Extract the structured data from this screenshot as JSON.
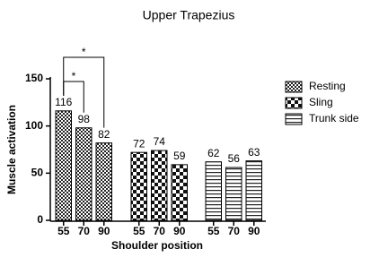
{
  "chart_data": {
    "type": "bar",
    "title": "Upper Trapezius",
    "x_label": "Shoulder position",
    "y_label": "Muscle activation",
    "categories": [
      "55",
      "70",
      "90"
    ],
    "series": [
      {
        "name": "Resting",
        "color": "#000000",
        "pattern": "fine-check",
        "values": [
          116,
          98,
          82
        ]
      },
      {
        "name": "Sling",
        "color": "#000000",
        "pattern": "check",
        "values": [
          72,
          74,
          59
        ]
      },
      {
        "name": "Trunk side",
        "color": "#000000",
        "pattern": "horizontal-lines",
        "values": [
          62,
          56,
          63
        ]
      }
    ],
    "annotations": [
      "*",
      "*"
    ],
    "ylim": [
      0,
      150
    ],
    "yticks": [
      0,
      50,
      100,
      150
    ],
    "grid": false
  }
}
